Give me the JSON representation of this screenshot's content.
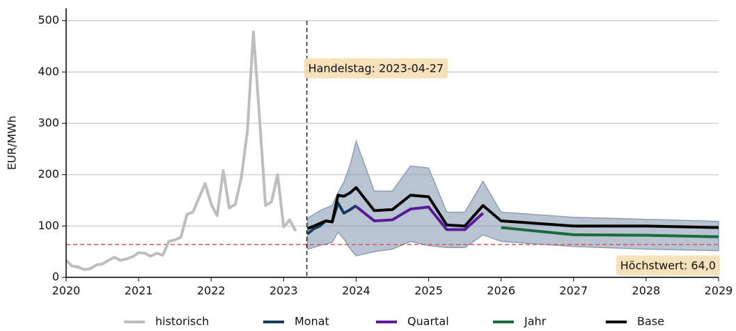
{
  "chart_data": {
    "type": "line",
    "y_label": "EUR/MWh",
    "xlim": [
      2020,
      2029
    ],
    "ylim": [
      0,
      524
    ],
    "xticks": [
      2020,
      2021,
      2022,
      2023,
      2024,
      2025,
      2026,
      2027,
      2028,
      2029
    ],
    "yticks": [
      0,
      100,
      200,
      300,
      400,
      500
    ],
    "grid": true,
    "legend": "bottom",
    "band": {
      "color": "#8a9db5",
      "x": [
        2023.33,
        2023.5,
        2023.67,
        2023.75,
        2023.83,
        2023.92,
        2024.0,
        2024.25,
        2024.5,
        2024.75,
        2025.0,
        2025.25,
        2025.5,
        2025.75,
        2026,
        2027,
        2028,
        2029
      ],
      "upper": [
        115,
        130,
        140,
        165,
        185,
        220,
        265,
        168,
        168,
        217,
        213,
        127,
        127,
        187,
        127,
        117,
        113,
        109
      ],
      "lower": [
        55,
        62,
        68,
        88,
        75,
        55,
        42,
        50,
        55,
        70,
        62,
        58,
        58,
        83,
        70,
        60,
        55,
        52
      ]
    },
    "series": [
      {
        "name": "historisch",
        "color": "#bdbdbd",
        "x": [
          2020.0,
          2020.083,
          2020.167,
          2020.25,
          2020.333,
          2020.417,
          2020.5,
          2020.583,
          2020.667,
          2020.75,
          2020.833,
          2020.917,
          2021.0,
          2021.083,
          2021.167,
          2021.25,
          2021.333,
          2021.417,
          2021.5,
          2021.583,
          2021.667,
          2021.75,
          2021.833,
          2021.917,
          2022.0,
          2022.083,
          2022.167,
          2022.25,
          2022.333,
          2022.417,
          2022.5,
          2022.583,
          2022.667,
          2022.75,
          2022.833,
          2022.917,
          2023.0,
          2023.083,
          2023.167
        ],
        "values": [
          33,
          22,
          20,
          15,
          17,
          24,
          26,
          33,
          39,
          33,
          36,
          40,
          48,
          47,
          41,
          47,
          43,
          70,
          73,
          78,
          123,
          127,
          155,
          183,
          143,
          120,
          208,
          135,
          142,
          195,
          285,
          478,
          312,
          140,
          147,
          200,
          98,
          112,
          90
        ]
      },
      {
        "name": "Monat",
        "color": "#163b5e",
        "x": [
          2023.33,
          2023.42,
          2023.5,
          2023.58,
          2023.67,
          2023.75,
          2023.83,
          2023.92,
          2024.0
        ],
        "values": [
          85,
          95,
          100,
          110,
          108,
          145,
          125,
          132,
          140
        ]
      },
      {
        "name": "Quartal",
        "color": "#5b1a9a",
        "x": [
          2024.0,
          2024.25,
          2024.5,
          2024.75,
          2025.0,
          2025.25,
          2025.5,
          2025.75
        ],
        "values": [
          138,
          110,
          112,
          133,
          137,
          93,
          93,
          125
        ]
      },
      {
        "name": "Jahr",
        "color": "#1a6b3a",
        "x": [
          2026,
          2027,
          2028,
          2029
        ],
        "values": [
          97,
          83,
          82,
          79
        ]
      },
      {
        "name": "Base",
        "color": "#000000",
        "x": [
          2023.33,
          2023.42,
          2023.5,
          2023.58,
          2023.67,
          2023.75,
          2023.83,
          2023.92,
          2024.0,
          2024.25,
          2024.5,
          2024.75,
          2025.0,
          2025.25,
          2025.5,
          2025.75,
          2026,
          2027,
          2028,
          2029
        ],
        "values": [
          95,
          100,
          105,
          110,
          108,
          160,
          158,
          165,
          175,
          130,
          132,
          160,
          157,
          102,
          100,
          140,
          110,
          100,
          100,
          97
        ]
      }
    ],
    "vline": {
      "x": 2023.32,
      "label": "Handelstag: 2023-04-27"
    },
    "hline": {
      "y": 64,
      "label": "Höchstwert: 64,0",
      "color": "#d9534f"
    }
  }
}
